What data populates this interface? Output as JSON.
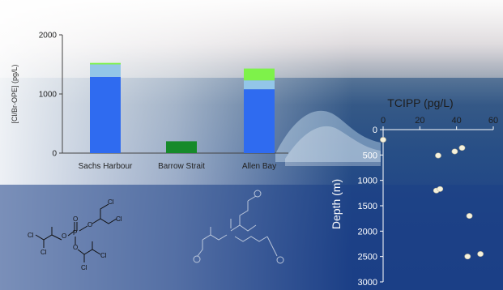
{
  "chart_data": [
    {
      "type": "bar",
      "stacked": true,
      "ylabel": "[Cl/Br-OPE] (pg/L)",
      "ylim": [
        0,
        2000
      ],
      "yticks": [
        0,
        1000,
        2000
      ],
      "categories": [
        "Sachs Harbour",
        "Barrow Strait",
        "Allen Bay"
      ],
      "series": [
        {
          "color": "#2f6bf0",
          "values": [
            1290,
            0,
            1080
          ]
        },
        {
          "color": "#93c6e8",
          "values": [
            210,
            0,
            150
          ]
        },
        {
          "color": "#7ef24a",
          "values": [
            25,
            0,
            200
          ]
        },
        {
          "color": "#168a2a",
          "values": [
            0,
            200,
            0
          ]
        }
      ]
    },
    {
      "type": "scatter",
      "title": "TCIPP (pg/L)",
      "ylabel": "Depth (m)",
      "xlim": [
        0,
        60
      ],
      "ylim": [
        0,
        3000
      ],
      "xticks": [
        0,
        20,
        40,
        60
      ],
      "yticks": [
        0,
        500,
        1000,
        1500,
        2000,
        2500,
        3000
      ],
      "y_inverted": true,
      "x_axis_position": "top",
      "points": [
        {
          "x": 0,
          "y": 200
        },
        {
          "x": 30,
          "y": 510
        },
        {
          "x": 39,
          "y": 430
        },
        {
          "x": 43,
          "y": 360
        },
        {
          "x": 29,
          "y": 1200
        },
        {
          "x": 31,
          "y": 1170
        },
        {
          "x": 47,
          "y": 1700
        },
        {
          "x": 46,
          "y": 2500
        },
        {
          "x": 53,
          "y": 2450
        }
      ]
    }
  ],
  "molecules": {
    "left_labels": [
      "Cl",
      "Cl",
      "Cl",
      "Cl",
      "Cl",
      "Cl"
    ],
    "left_atoms": [
      "O",
      "O",
      "O",
      "P",
      "O"
    ]
  },
  "colors": {
    "ocean": "#1c3f86",
    "sky": "#c5c3c9",
    "marker": "#f6f2dc"
  }
}
